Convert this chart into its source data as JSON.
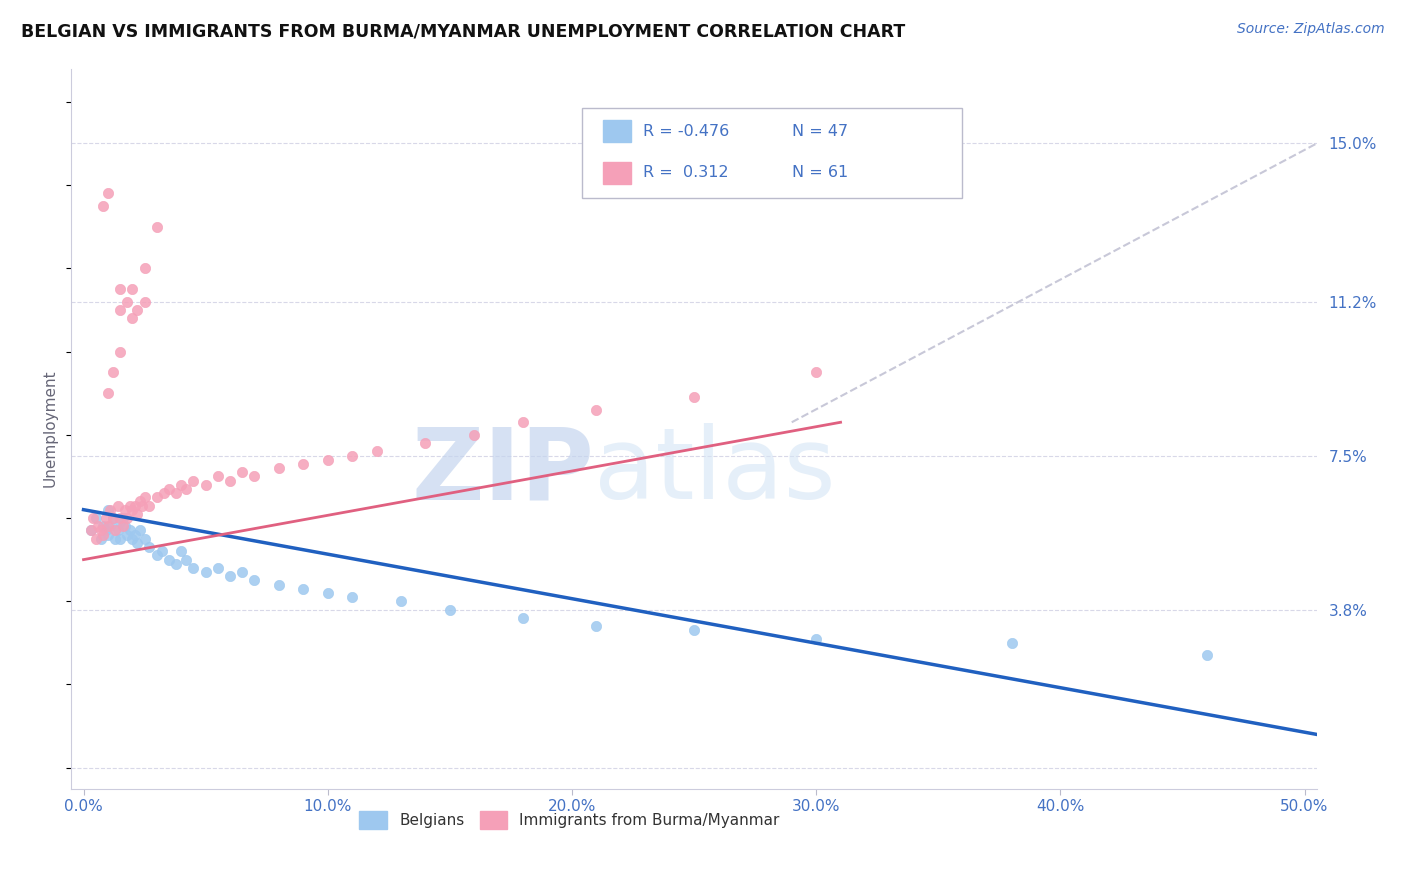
{
  "title": "BELGIAN VS IMMIGRANTS FROM BURMA/MYANMAR UNEMPLOYMENT CORRELATION CHART",
  "source": "Source: ZipAtlas.com",
  "ylabel": "Unemployment",
  "xlim": [
    -0.005,
    0.505
  ],
  "ylim": [
    -0.005,
    0.168
  ],
  "yticks": [
    0.0,
    0.038,
    0.075,
    0.112,
    0.15
  ],
  "ytick_labels": [
    "",
    "3.8%",
    "7.5%",
    "11.2%",
    "15.0%"
  ],
  "xtick_vals": [
    0.0,
    0.1,
    0.2,
    0.3,
    0.4,
    0.5
  ],
  "xtick_labels": [
    "0.0%",
    "10.0%",
    "20.0%",
    "30.0%",
    "40.0%",
    "50.0%"
  ],
  "belgian_color": "#9ec8ef",
  "myanmar_color": "#f5a0b8",
  "trendline_blue": "#2060c0",
  "trendline_pink": "#e06080",
  "trendline_gray": "#c8c8d8",
  "axis_color": "#4472c4",
  "grid_color": "#d8d8e8",
  "watermark_zip": "ZIP",
  "watermark_atlas": "atlas",
  "watermark_color_zip": "#c8d8f0",
  "watermark_color_atlas": "#d0e0f8",
  "label_belgians": "Belgians",
  "label_myanmar": "Immigrants from Burma/Myanmar",
  "belgian_x": [
    0.003,
    0.005,
    0.007,
    0.008,
    0.009,
    0.01,
    0.01,
    0.011,
    0.012,
    0.013,
    0.014,
    0.015,
    0.015,
    0.016,
    0.017,
    0.018,
    0.019,
    0.02,
    0.021,
    0.022,
    0.023,
    0.025,
    0.027,
    0.03,
    0.032,
    0.035,
    0.038,
    0.04,
    0.042,
    0.045,
    0.05,
    0.055,
    0.06,
    0.065,
    0.07,
    0.08,
    0.09,
    0.1,
    0.11,
    0.13,
    0.15,
    0.18,
    0.21,
    0.25,
    0.3,
    0.38,
    0.46
  ],
  "belgian_y": [
    0.057,
    0.06,
    0.055,
    0.058,
    0.057,
    0.056,
    0.062,
    0.058,
    0.06,
    0.055,
    0.057,
    0.059,
    0.055,
    0.06,
    0.058,
    0.056,
    0.057,
    0.055,
    0.056,
    0.054,
    0.057,
    0.055,
    0.053,
    0.051,
    0.052,
    0.05,
    0.049,
    0.052,
    0.05,
    0.048,
    0.047,
    0.048,
    0.046,
    0.047,
    0.045,
    0.044,
    0.043,
    0.042,
    0.041,
    0.04,
    0.038,
    0.036,
    0.034,
    0.033,
    0.031,
    0.03,
    0.027
  ],
  "myanmar_x": [
    0.003,
    0.004,
    0.005,
    0.006,
    0.007,
    0.008,
    0.009,
    0.01,
    0.011,
    0.012,
    0.013,
    0.014,
    0.015,
    0.016,
    0.017,
    0.018,
    0.019,
    0.02,
    0.021,
    0.022,
    0.023,
    0.024,
    0.025,
    0.027,
    0.03,
    0.033,
    0.035,
    0.038,
    0.04,
    0.042,
    0.045,
    0.05,
    0.055,
    0.06,
    0.065,
    0.07,
    0.08,
    0.09,
    0.1,
    0.11,
    0.12,
    0.14,
    0.16,
    0.18,
    0.21,
    0.25,
    0.3,
    0.01,
    0.012,
    0.015,
    0.02,
    0.025,
    0.03,
    0.008,
    0.01,
    0.015,
    0.02,
    0.025,
    0.015,
    0.018,
    0.022
  ],
  "myanmar_y": [
    0.057,
    0.06,
    0.055,
    0.058,
    0.057,
    0.056,
    0.06,
    0.058,
    0.062,
    0.06,
    0.057,
    0.063,
    0.06,
    0.058,
    0.062,
    0.06,
    0.063,
    0.062,
    0.063,
    0.061,
    0.064,
    0.063,
    0.065,
    0.063,
    0.065,
    0.066,
    0.067,
    0.066,
    0.068,
    0.067,
    0.069,
    0.068,
    0.07,
    0.069,
    0.071,
    0.07,
    0.072,
    0.073,
    0.074,
    0.075,
    0.076,
    0.078,
    0.08,
    0.083,
    0.086,
    0.089,
    0.095,
    0.09,
    0.095,
    0.1,
    0.108,
    0.12,
    0.13,
    0.135,
    0.138,
    0.115,
    0.115,
    0.112,
    0.11,
    0.112,
    0.11
  ],
  "blue_trend_x0": 0.0,
  "blue_trend_y0": 0.062,
  "blue_trend_x1": 0.505,
  "blue_trend_y1": 0.008,
  "pink_trend_x0": 0.0,
  "pink_trend_y0": 0.05,
  "pink_trend_x1": 0.31,
  "pink_trend_y1": 0.083,
  "gray_trend_x0": 0.29,
  "gray_trend_y0": 0.083,
  "gray_trend_x1": 0.505,
  "gray_trend_y1": 0.15
}
